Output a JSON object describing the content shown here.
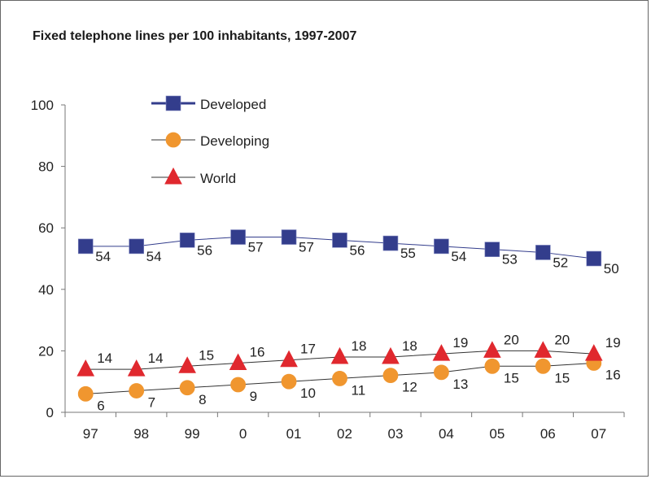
{
  "chart_data": {
    "type": "line",
    "title": "Fixed telephone lines per 100 inhabitants, 1997-2007",
    "xlabel": "",
    "ylabel": "",
    "ylim": [
      0,
      100
    ],
    "yticks": [
      0,
      20,
      40,
      60,
      80,
      100
    ],
    "grid": false,
    "legend_position": "top-left",
    "categories": [
      "97",
      "98",
      "99",
      "0",
      "01",
      "02",
      "03",
      "04",
      "05",
      "06",
      "07"
    ],
    "series": [
      {
        "name": "Developed",
        "marker": "square",
        "color": "#333d8c",
        "line_color": "#333d8c",
        "values": [
          54,
          54,
          56,
          57,
          57,
          56,
          55,
          54,
          53,
          52,
          50
        ]
      },
      {
        "name": "Developing",
        "marker": "circle",
        "color": "#f0962f",
        "line_color": "#333333",
        "values": [
          6,
          7,
          8,
          9,
          10,
          11,
          12,
          13,
          15,
          15,
          16
        ]
      },
      {
        "name": "World",
        "marker": "triangle",
        "color": "#e0282e",
        "line_color": "#333333",
        "values": [
          14,
          14,
          15,
          16,
          17,
          18,
          18,
          19,
          20,
          20,
          19
        ]
      }
    ]
  }
}
